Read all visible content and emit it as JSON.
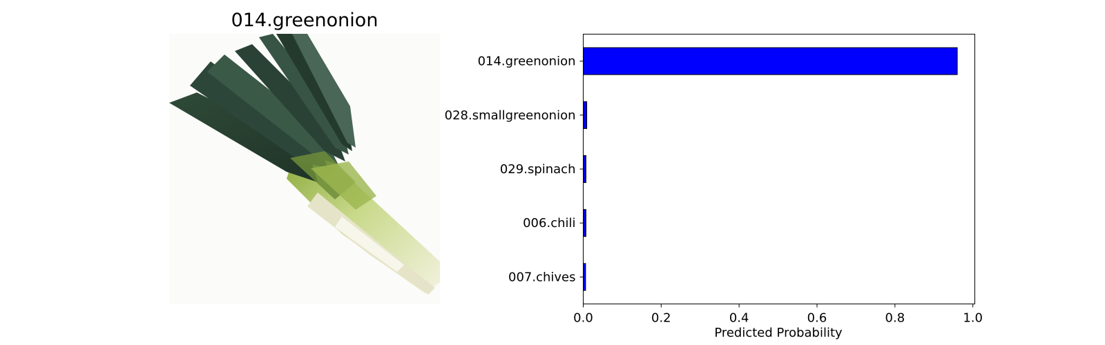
{
  "image_panel": {
    "title": "014.greenonion",
    "subject": "green onion (leek) photograph"
  },
  "chart_data": {
    "type": "bar",
    "orientation": "horizontal",
    "categories": [
      "014.greenonion",
      "028.smallgreenonion",
      "029.spinach",
      "006.chili",
      "007.chives"
    ],
    "values": [
      0.96,
      0.009,
      0.007,
      0.007,
      0.006
    ],
    "xlabel": "Predicted Probability",
    "xticks": [
      "0.0",
      "0.2",
      "0.4",
      "0.6",
      "0.8",
      "1.0"
    ],
    "xlim": [
      0,
      1.005
    ],
    "bar_color": "#0000ff",
    "edge_color": "#000000",
    "grid": false
  }
}
